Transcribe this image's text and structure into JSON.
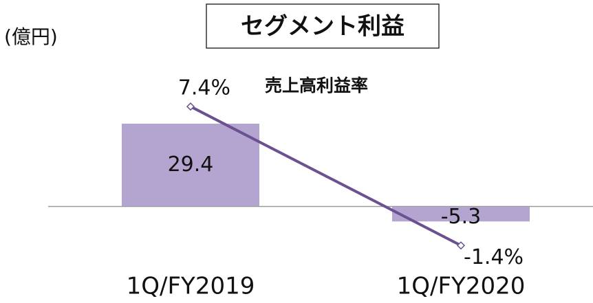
{
  "chart_data": {
    "type": "bar",
    "title": "セグメント利益",
    "unit_label": "(億円)",
    "categories": [
      "1Q/FY2019",
      "1Q/FY2020"
    ],
    "ylim": [
      -34,
      45
    ],
    "y2lim": [
      -5,
      9.1
    ],
    "series": [
      {
        "type": "bar",
        "color": "#b4a5d0",
        "values": [
          29.4,
          -5.3
        ]
      },
      {
        "type": "line",
        "name": "売上高利益率",
        "axis": "y2",
        "color": "#6b5190",
        "values": [
          7.4,
          -1.4
        ],
        "value_labels": [
          "7.4%",
          "-1.4%"
        ]
      }
    ]
  }
}
